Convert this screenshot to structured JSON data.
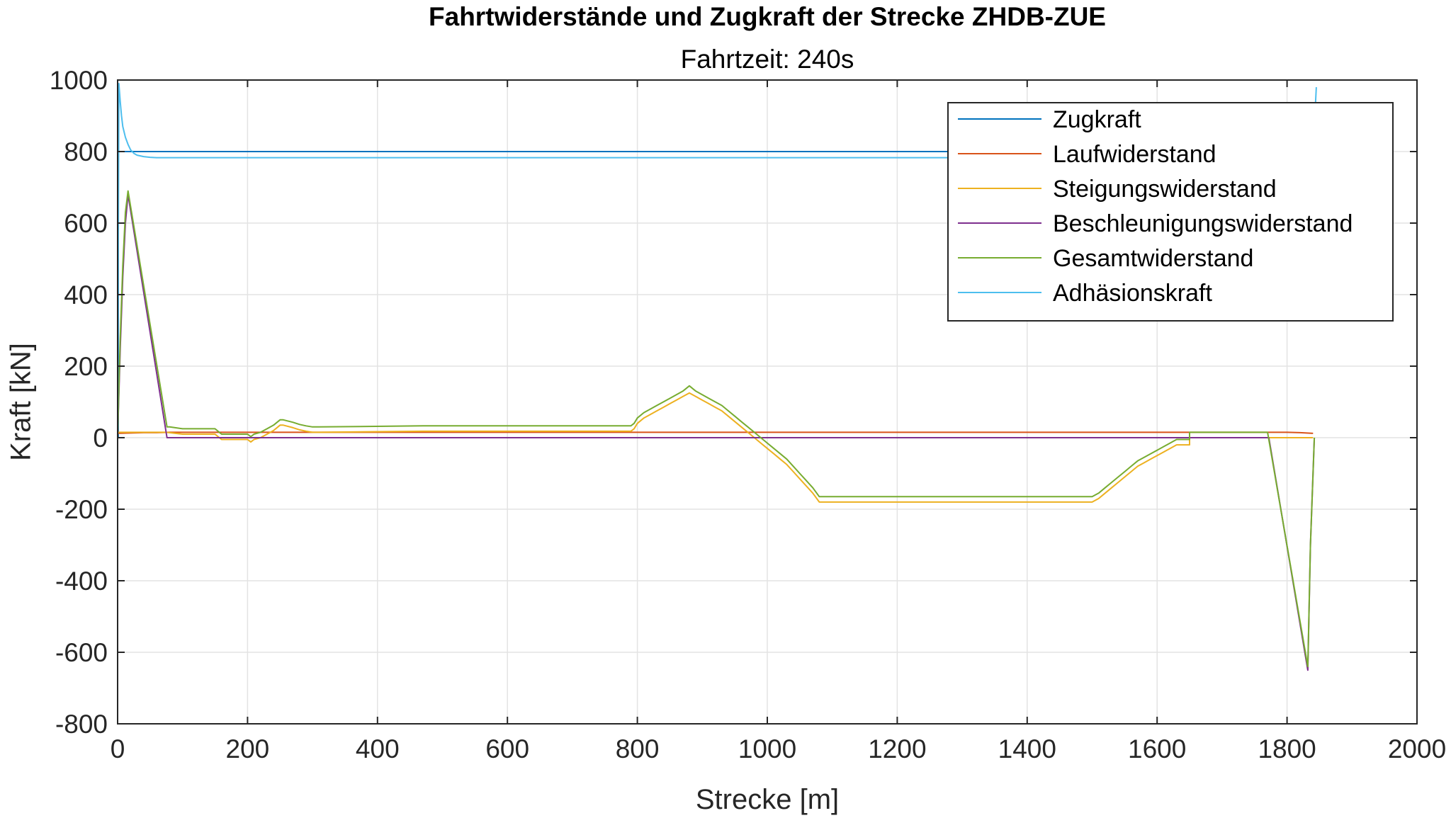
{
  "chart_data": {
    "type": "line",
    "title": "Fahrtwiderstände und Zugkraft der Strecke ZHDB-ZUE",
    "subtitle": "Fahrtzeit: 240s",
    "xlabel": "Strecke [m]",
    "ylabel": "Kraft [kN]",
    "xlim": [
      0,
      2000
    ],
    "ylim": [
      -800,
      1000
    ],
    "xticks": [
      0,
      200,
      400,
      600,
      800,
      1000,
      1200,
      1400,
      1600,
      1800,
      2000
    ],
    "yticks": [
      -800,
      -600,
      -400,
      -200,
      0,
      200,
      400,
      600,
      800,
      1000
    ],
    "grid": true,
    "legend_position": "top-right",
    "series": [
      {
        "name": "Zugkraft",
        "color": "#0072BD",
        "x": [
          0,
          1,
          1,
          1840
        ],
        "y": [
          0,
          0,
          800,
          800
        ]
      },
      {
        "name": "Laufwiderstand",
        "color": "#D95319",
        "x": [
          0,
          20,
          40,
          60,
          80,
          100,
          200,
          400,
          600,
          800,
          1000,
          1200,
          1400,
          1600,
          1700,
          1800,
          1820,
          1840
        ],
        "y": [
          12,
          13,
          14,
          14,
          15,
          15,
          15,
          15,
          15,
          15,
          15,
          15,
          15,
          15,
          15,
          15,
          14,
          12
        ]
      },
      {
        "name": "Steigungswiderstand",
        "color": "#EDB120",
        "x": [
          0,
          75,
          100,
          150,
          160,
          200,
          205,
          210,
          220,
          230,
          240,
          250,
          255,
          270,
          280,
          290,
          300,
          310,
          470,
          700,
          790,
          795,
          800,
          810,
          820,
          830,
          840,
          850,
          860,
          870,
          880,
          890,
          900,
          910,
          920,
          930,
          940,
          950,
          960,
          970,
          980,
          990,
          1000,
          1010,
          1020,
          1030,
          1040,
          1050,
          1060,
          1070,
          1080,
          1500,
          1510,
          1520,
          1530,
          1540,
          1550,
          1560,
          1570,
          1580,
          1590,
          1600,
          1610,
          1620,
          1630,
          1650,
          1650,
          1840
        ],
        "y": [
          15,
          15,
          10,
          10,
          -5,
          -5,
          -12,
          -5,
          0,
          10,
          20,
          35,
          35,
          28,
          22,
          18,
          15,
          15,
          18,
          18,
          18,
          25,
          40,
          55,
          65,
          75,
          85,
          95,
          105,
          115,
          125,
          115,
          105,
          95,
          85,
          75,
          60,
          45,
          30,
          15,
          0,
          -15,
          -30,
          -45,
          -60,
          -75,
          -95,
          -115,
          -135,
          -155,
          -180,
          -180,
          -170,
          -155,
          -140,
          -125,
          -110,
          -95,
          -80,
          -70,
          -60,
          -50,
          -40,
          -30,
          -20,
          -20,
          0,
          0
        ]
      },
      {
        "name": "Beschleunigungswiderstand",
        "color": "#7E2F8E",
        "x": [
          0,
          4,
          8,
          12,
          16,
          76,
          78,
          1770,
          1772,
          1832,
          1836,
          1842
        ],
        "y": [
          0,
          250,
          450,
          600,
          680,
          0,
          0,
          0,
          0,
          -650,
          -300,
          0
        ]
      },
      {
        "name": "Gesamtwiderstand",
        "color": "#77AC30",
        "x": [
          0,
          4,
          8,
          12,
          16,
          76,
          80,
          100,
          150,
          160,
          200,
          205,
          210,
          220,
          230,
          240,
          250,
          255,
          270,
          280,
          290,
          300,
          310,
          470,
          700,
          790,
          795,
          800,
          810,
          820,
          830,
          840,
          850,
          860,
          870,
          880,
          890,
          900,
          910,
          920,
          930,
          940,
          950,
          960,
          970,
          980,
          990,
          1000,
          1010,
          1020,
          1030,
          1040,
          1050,
          1060,
          1070,
          1080,
          1500,
          1510,
          1520,
          1530,
          1540,
          1550,
          1560,
          1570,
          1580,
          1590,
          1600,
          1610,
          1620,
          1630,
          1650,
          1650,
          1770,
          1832,
          1836,
          1842
        ],
        "y": [
          0,
          280,
          480,
          630,
          690,
          30,
          30,
          25,
          25,
          10,
          10,
          3,
          10,
          15,
          25,
          35,
          50,
          50,
          43,
          37,
          33,
          30,
          30,
          33,
          33,
          33,
          40,
          55,
          70,
          80,
          90,
          100,
          110,
          120,
          130,
          145,
          130,
          120,
          110,
          100,
          90,
          75,
          60,
          45,
          30,
          15,
          0,
          -15,
          -30,
          -45,
          -60,
          -80,
          -100,
          -120,
          -140,
          -165,
          -165,
          -155,
          -140,
          -125,
          -110,
          -95,
          -80,
          -65,
          -55,
          -45,
          -35,
          -25,
          -15,
          -5,
          -5,
          15,
          15,
          -640,
          -300,
          0
        ]
      },
      {
        "name": "Adhäsionskraft",
        "color": "#4DBEEE",
        "x": [
          0,
          2,
          4,
          6,
          8,
          12,
          16,
          20,
          25,
          30,
          40,
          50,
          60,
          80,
          1840,
          1840,
          1845
        ],
        "y": [
          0,
          990,
          940,
          900,
          870,
          840,
          820,
          805,
          795,
          790,
          786,
          784,
          783,
          783,
          783,
          800,
          980
        ]
      }
    ]
  }
}
